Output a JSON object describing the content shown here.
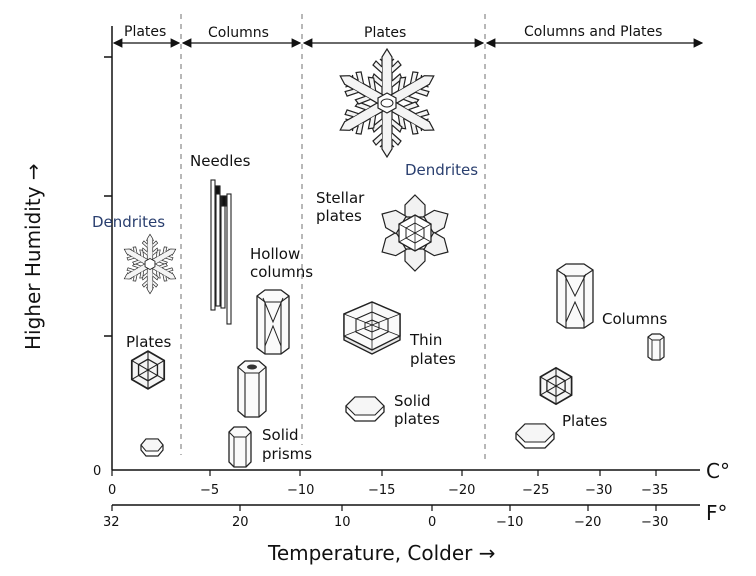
{
  "regimes": [
    "Plates",
    "Columns",
    "Plates",
    "Columns and Plates"
  ],
  "crystals": {
    "dendrites_left": "Dendrites",
    "plates_left": "Plates",
    "needles": "Needles",
    "hollow_columns": [
      "Hollow",
      "columns"
    ],
    "solid_prisms": [
      "Solid",
      "prisms"
    ],
    "dendrites_top": "Dendrites",
    "stellar_plates": [
      "Stellar",
      "plates"
    ],
    "thin_plates": [
      "Thin",
      "plates"
    ],
    "solid_plates": [
      "Solid",
      "plates"
    ],
    "columns_right": "Columns",
    "plates_right": "Plates"
  },
  "axes": {
    "y_title": "Higher Humidity →",
    "y_zero": "0",
    "x_title": "Temperature,  Colder →",
    "celsius_unit": "C°",
    "fahrenheit_unit": "F°",
    "celsius_ticks": [
      "0",
      "−5",
      "−10",
      "−15",
      "−20",
      "−25",
      "−30",
      "−35"
    ],
    "fahrenheit_ticks": [
      "32",
      "20",
      "10",
      "0",
      "−10",
      "−20",
      "−30"
    ]
  }
}
